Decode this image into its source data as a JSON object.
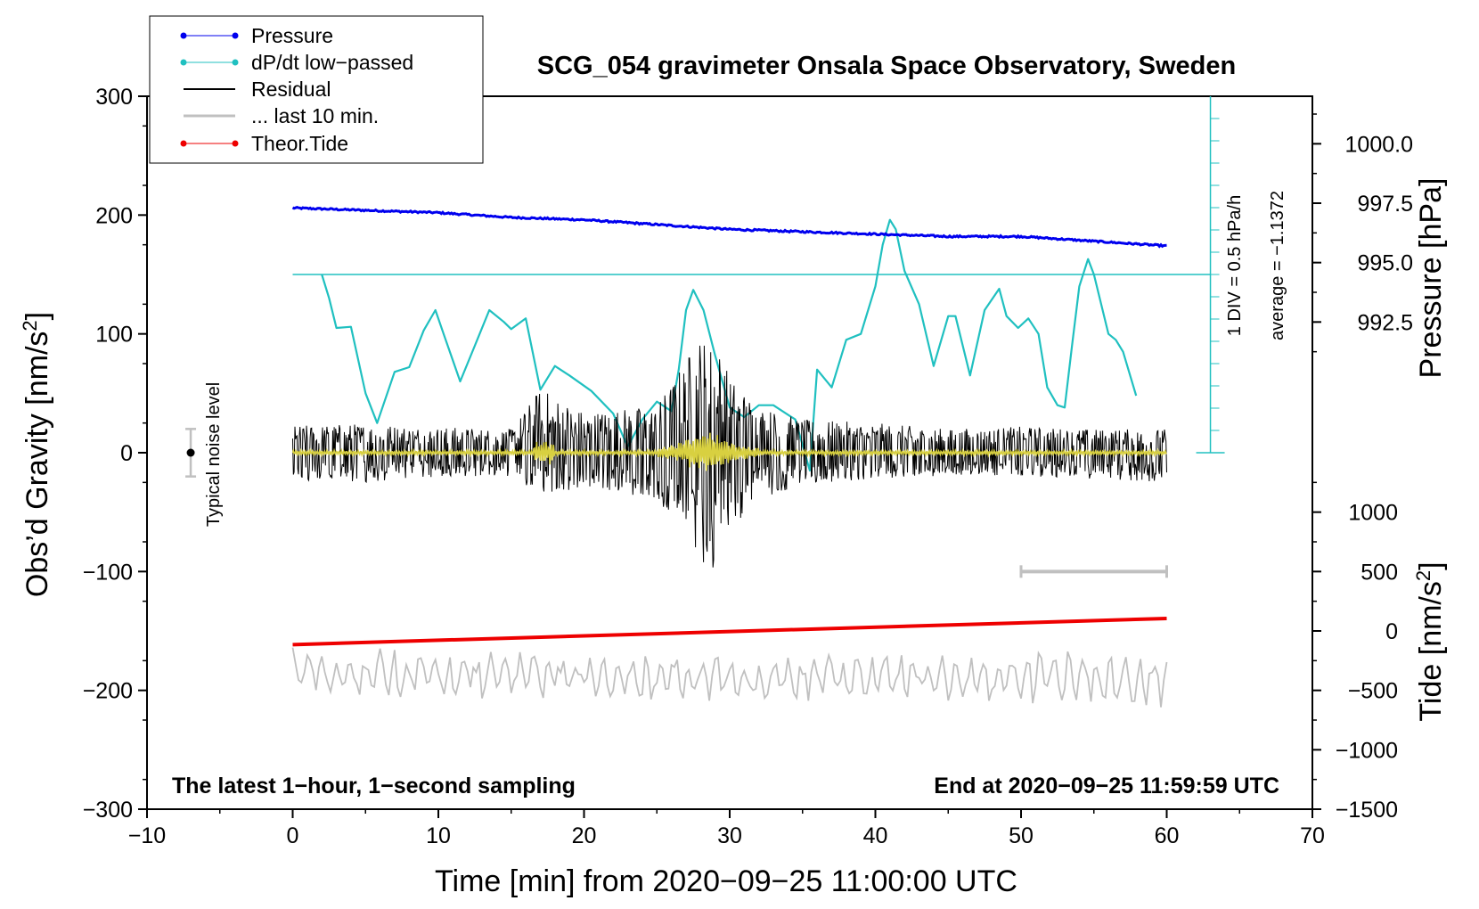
{
  "chart_data": {
    "type": "line",
    "title": "SCG_054 gravimeter Onsala Space Observatory, Sweden",
    "xlabel": "Time [min] from 2020−09−25 11:00:00 UTC",
    "ylabel_left": "Obs’d Gravity [nm/s",
    "ylabel_left_sup": "2",
    "ylabel_left_end": "]",
    "ylabel_right_pressure": "Pressure [hPa]",
    "ylabel_right_tide": "Tide [nm/s",
    "ylabel_right_tide_sup": "2",
    "ylabel_right_tide_end": "]",
    "xlim": [
      -10,
      70
    ],
    "ylim_left": [
      -300,
      300
    ],
    "ylim_tide": [
      -1500,
      4500
    ],
    "x_ticks": [
      "−10",
      "0",
      "10",
      "20",
      "30",
      "40",
      "50",
      "60",
      "70"
    ],
    "x_tick_values": [
      -10,
      0,
      10,
      20,
      30,
      40,
      50,
      60,
      70
    ],
    "y_left_ticks": [
      "300",
      "200",
      "100",
      "0",
      "−100",
      "−200",
      "−300"
    ],
    "y_left_tick_values": [
      300,
      200,
      100,
      0,
      -100,
      -200,
      -300
    ],
    "pressure_ticks": [
      "1000.0",
      "997.5",
      "995.0",
      "992.5"
    ],
    "pressure_tick_values": [
      1000.0,
      997.5,
      995.0,
      992.5
    ],
    "pressure_mapping": {
      "hPa_at_gravity_200": 997.0,
      "gravity_units_per_hPa": 20
    },
    "tide_ticks": [
      "1000",
      "500",
      "0",
      "−500",
      "−1000",
      "−1500"
    ],
    "tide_tick_values": [
      1000,
      500,
      0,
      -500,
      -1000,
      -1500
    ],
    "legend": [
      "Pressure",
      "dP/dt low−passed",
      "Residual",
      "... last 10 min.",
      "Theor.Tide"
    ],
    "legend_position": "top-left",
    "bottom_left_text": "The latest 1−hour, 1−second sampling",
    "bottom_right_text": "End at 2020−09−25 11:59:59 UTC",
    "dpdt_scale_label": "1 DIV = 0.5 hPa/h",
    "dpdt_average_label": "average = −1.1372",
    "noise_label": "Typical noise level",
    "colors": {
      "pressure": "#0000ee",
      "dpdt": "#20c0c0",
      "residual": "#000000",
      "residual_filtered": "#d8d040",
      "last10": "#c0c0c0",
      "tide": "#ee0000",
      "noise_bar": "#c0c0c0"
    },
    "series": [
      {
        "name": "Pressure",
        "unit": "hPa",
        "x": [
          0,
          5,
          10,
          15,
          20,
          25,
          30,
          35,
          40,
          45,
          50,
          55,
          60
        ],
        "values": [
          997.3,
          997.2,
          997.1,
          996.9,
          996.8,
          996.6,
          996.4,
          996.3,
          996.2,
          996.1,
          996.1,
          995.9,
          995.7
        ]
      },
      {
        "name": "dP/dt low−passed",
        "unit": "gravity-axis",
        "x": [
          2,
          2.5,
          3,
          4,
          5,
          5.8,
          7,
          8,
          9,
          9.8,
          10.5,
          11.5,
          12.5,
          13.5,
          14.5,
          15,
          16,
          17,
          18,
          19,
          20.5,
          22,
          23,
          24,
          25,
          26,
          26.5,
          27,
          27.5,
          28.2,
          29,
          30,
          31,
          32,
          33,
          34.5,
          35.5,
          36,
          37,
          38,
          39,
          40,
          40.5,
          41,
          41.4,
          42,
          43,
          44,
          45,
          45.5,
          46,
          46.5,
          47.5,
          48.5,
          49,
          49.8,
          50.5,
          51.2,
          51.8,
          52.5,
          53,
          53.5,
          54,
          54.6,
          55,
          56,
          56.5,
          57,
          57.9
        ],
        "values": [
          150,
          130,
          105,
          106,
          50,
          25,
          68,
          72,
          103,
          120,
          95,
          60,
          90,
          120,
          110,
          104,
          113,
          53,
          73,
          65,
          52,
          33,
          5,
          28,
          43,
          35,
          70,
          120,
          137,
          120,
          82,
          38,
          30,
          40,
          40,
          28,
          -15,
          70,
          55,
          95,
          100,
          140,
          175,
          196,
          188,
          153,
          125,
          73,
          115,
          115,
          90,
          65,
          120,
          138,
          115,
          105,
          113,
          100,
          55,
          40,
          38,
          90,
          140,
          163,
          150,
          100,
          95,
          85,
          48
        ]
      },
      {
        "name": "Residual",
        "unit": "nm/s2",
        "x": [
          0,
          5,
          10,
          15,
          17,
          20,
          25,
          27,
          28,
          28.5,
          29,
          30,
          32,
          35,
          40,
          45,
          50,
          55,
          60
        ],
        "values_max": [
          23,
          25,
          22,
          20,
          55,
          35,
          40,
          80,
          103,
          92,
          100,
          65,
          40,
          28,
          25,
          20,
          22,
          20,
          20
        ],
        "values_min": [
          -23,
          -25,
          -20,
          -22,
          -35,
          -30,
          -40,
          -70,
          -100,
          -112,
          -90,
          -65,
          -40,
          -27,
          -22,
          -20,
          -20,
          -22,
          -25
        ]
      },
      {
        "name": "... last 10 min.",
        "unit": "nm/s2 (offset −200)",
        "x": [
          0,
          10,
          20,
          30,
          40,
          50,
          60
        ],
        "values_max": [
          -160,
          -165,
          -165,
          -170,
          -168,
          -165,
          -168
        ],
        "values_min": [
          -210,
          -210,
          -210,
          -210,
          -210,
          -212,
          -215
        ]
      },
      {
        "name": "Theor.Tide",
        "unit": "nm/s2",
        "x": [
          0,
          60
        ],
        "values": [
          -115,
          105
        ]
      }
    ],
    "noise_level": {
      "x": -7,
      "center": 0,
      "half_range": 20
    },
    "last10_marker": {
      "x_start": 50,
      "x_end": 60,
      "y": -100
    }
  }
}
